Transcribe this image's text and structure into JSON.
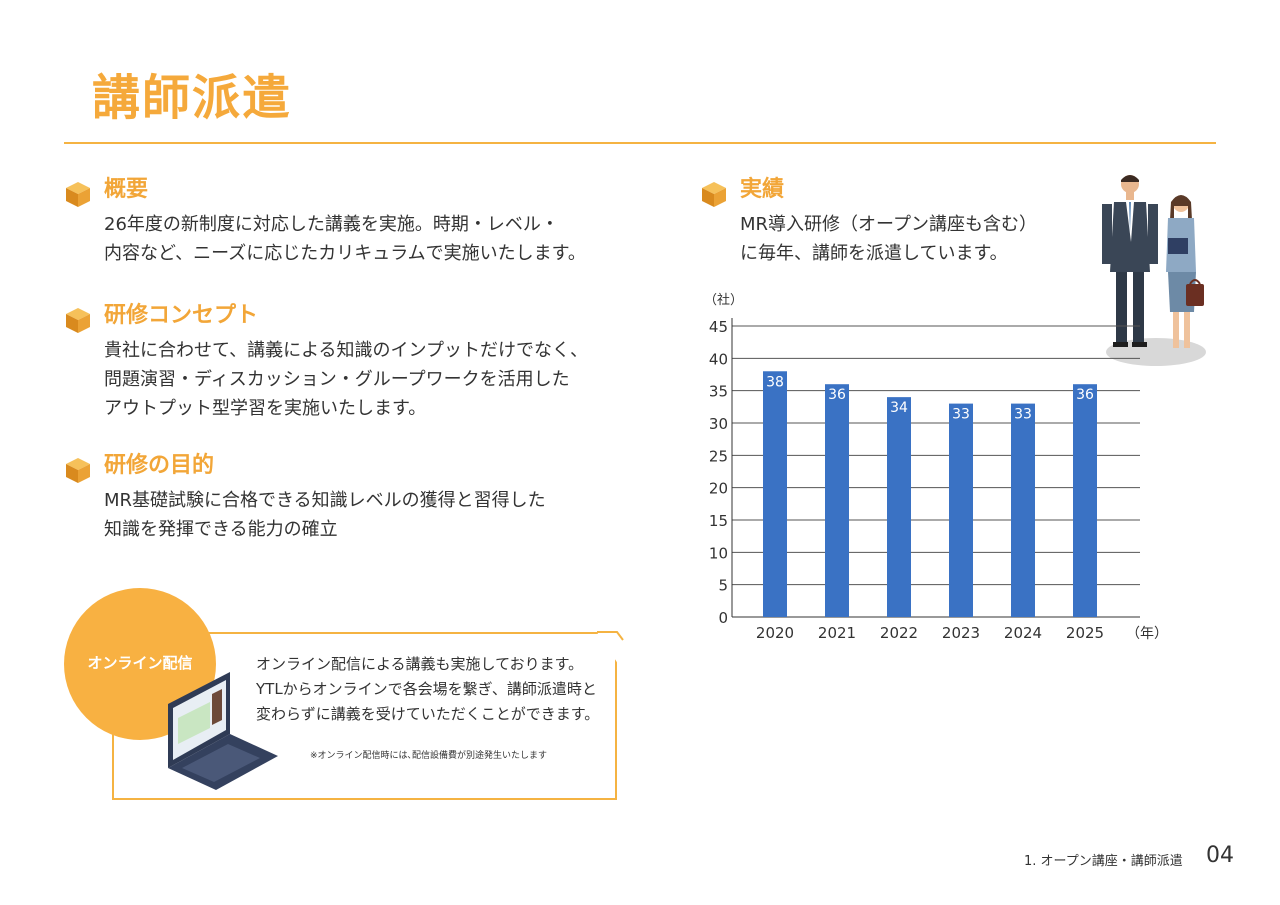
{
  "header": {
    "title": "講師派遣"
  },
  "sections": {
    "overview": {
      "title": "概要",
      "body": "26年度の新制度に対応した講義を実施。時期・レベル・\n内容など、ニーズに応じたカリキュラムで実施いたします。"
    },
    "concept": {
      "title": "研修コンセプト",
      "body": "貴社に合わせて、講義による知識のインプットだけでなく、\n問題演習・ディスカッション・グループワークを活用した\nアウトプット型学習を実施いたします。"
    },
    "purpose": {
      "title": "研修の目的",
      "body": "MR基礎試験に合格できる知識レベルの獲得と習得した\n知識を発揮できる能力の確立"
    },
    "results": {
      "title": "実績",
      "body": "MR導入研修（オープン講座も含む）\nに毎年、講師を派遣しています。"
    }
  },
  "online": {
    "badge": "オンライン配信",
    "text": "オンライン配信による講義も実施しております。\nYTLからオンラインで各会場を繋ぎ、講師派遣時と\n変わらずに講義を受けていただくことができます。",
    "note": "※オンライン配信時には､配信設備費が別途発生いたします"
  },
  "chart_data": {
    "type": "bar",
    "categories": [
      "2020",
      "2021",
      "2022",
      "2023",
      "2024",
      "2025"
    ],
    "values": [
      38,
      36,
      34,
      33,
      33,
      36
    ],
    "ylim": [
      0,
      45
    ],
    "yticks": [
      0,
      5,
      10,
      15,
      20,
      25,
      30,
      35,
      40,
      45
    ],
    "ylabel": "（社）",
    "xlabel": "（年）",
    "data_labels": true,
    "grid": true,
    "bar_color": "#3a72c4",
    "label_color": "#ffffff"
  },
  "footer": {
    "section_label": "1. オープン講座・講師派遣",
    "page_number": "04"
  },
  "colors": {
    "accent": "#f5a93b",
    "rule": "#f5b342",
    "bar": "#3a72c4"
  },
  "icons": {
    "section_bullet": "cube-icon",
    "laptop": "laptop-icon",
    "people": "business-people-illustration"
  }
}
